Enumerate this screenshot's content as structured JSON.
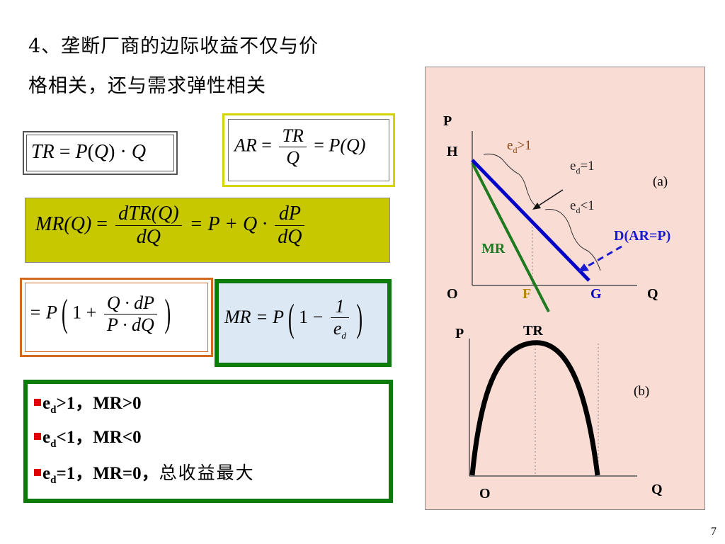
{
  "heading": {
    "line1": "4、垄断厂商的边际收益不仅与价",
    "line2": "格相关，还与需求弹性相关"
  },
  "formulas": {
    "tr": {
      "lhs": "TR",
      "eq": "=",
      "p": "P",
      "q": "Q",
      "dot": "·",
      "q2": "Q"
    },
    "ar": {
      "lhs": "AR",
      "eq": "=",
      "num": "TR",
      "den": "Q",
      "eq2": "=",
      "rhs": "P(Q)"
    },
    "mr": {
      "lhs": "MR(Q)",
      "eq": "=",
      "num": "dTR(Q)",
      "den": "dQ",
      "mid": "= P + Q ·",
      "num2": "dP",
      "den2": "dQ"
    },
    "mr_expand": {
      "lead": "= P",
      "one": "1 +",
      "num": "Q · dP",
      "den": "P · dQ"
    },
    "mr_elastic": {
      "lhs": "MR = P",
      "one": "1 −",
      "num": "1",
      "den": "e",
      "den_sub": "d"
    }
  },
  "conclusions": [
    {
      "e": "e",
      "sub": "d",
      "rest": ">1，MR>0",
      "note": ""
    },
    {
      "e": "e",
      "sub": "d",
      "rest": "<1，MR<0",
      "note": ""
    },
    {
      "e": "e",
      "sub": "d",
      "rest": "=1，MR=0，",
      "note": "总收益最大"
    }
  ],
  "graph_a": {
    "p_label": "P",
    "h_label": "H",
    "o_label": "O",
    "f_label": "F",
    "g_label": "G",
    "q_label": "Q",
    "mr_label": "MR",
    "panel_label": "(a)",
    "demand_label": "D(AR=P)",
    "ed_gt": {
      "e": "e",
      "sub": "d",
      "rest": ">1"
    },
    "ed_eq": {
      "e": "e",
      "sub": "d",
      "rest": "=1"
    },
    "ed_lt": {
      "e": "e",
      "sub": "d",
      "rest": "<1"
    },
    "colors": {
      "demand": "#0000c8",
      "mr": "#1f7a1f",
      "arrow": "#1a1ad0"
    }
  },
  "graph_b": {
    "p_label": "P",
    "tr_label": "TR",
    "o_label": "O",
    "q_label": "Q",
    "panel_label": "(b)"
  },
  "page_number": "7",
  "colors": {
    "tr_box_border": "#555555",
    "ar_box_border": "#d4d400",
    "mr_box_fill": "#c8c800",
    "expand_box_border": "#d2691e",
    "elastic_box_border": "#0b7a0b",
    "elastic_box_fill": "#dce8f4",
    "list_box_border": "#0b7a0b",
    "graph_bg": "#f9dcd4"
  }
}
